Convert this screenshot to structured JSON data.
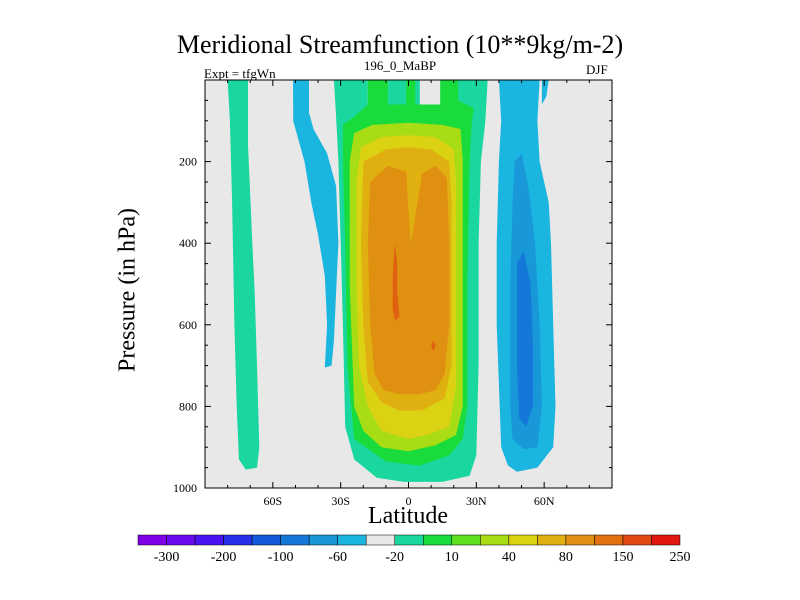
{
  "chart_data": {
    "type": "contour",
    "title": "Meridional Streamfunction (10**9kg/m-2)",
    "left_label": "Expt = tfgWn",
    "center_label": "196_0_MaBP",
    "right_label": "DJF",
    "xlabel": "Latitude",
    "ylabel": "Pressure (in hPa)",
    "xlim": [
      -90,
      90
    ],
    "ylim": [
      1000,
      0
    ],
    "x_ticks": [
      {
        "value": -60,
        "label": "60S"
      },
      {
        "value": -30,
        "label": "30S"
      },
      {
        "value": 0,
        "label": "0"
      },
      {
        "value": 30,
        "label": "30N"
      },
      {
        "value": 60,
        "label": "60N"
      }
    ],
    "y_ticks": [
      {
        "value": 200,
        "label": "200"
      },
      {
        "value": 400,
        "label": "400"
      },
      {
        "value": 600,
        "label": "600"
      },
      {
        "value": 800,
        "label": "800"
      },
      {
        "value": 1000,
        "label": "1000"
      }
    ],
    "colorbar": {
      "colors": [
        "#8000e6",
        "#6a0bee",
        "#4a14f0",
        "#2830e8",
        "#1558dc",
        "#1478d8",
        "#1898d8",
        "#1ab6e0",
        "#e8e8e8",
        "#1ad7a0",
        "#19dc3c",
        "#5ee01c",
        "#a8dc14",
        "#dcd214",
        "#e0b010",
        "#e09010",
        "#e07010",
        "#e04a10",
        "#e01810"
      ],
      "labels": [
        "-300",
        "-200",
        "-100",
        "-60",
        "-20",
        "10",
        "40",
        "80",
        "150",
        "250"
      ]
    },
    "regions": [
      {
        "name": "sh-outer-cell",
        "level": 10,
        "color": "#1ad7a0",
        "points": [
          [
            -80,
            0
          ],
          [
            -71,
            0
          ],
          [
            -71,
            160
          ],
          [
            -70,
            280
          ],
          [
            -69,
            410
          ],
          [
            -68,
            520
          ],
          [
            -67,
            700
          ],
          [
            -66,
            900
          ],
          [
            -67,
            950
          ],
          [
            -72,
            955
          ],
          [
            -75,
            930
          ],
          [
            -76,
            800
          ],
          [
            -77,
            600
          ],
          [
            -78,
            300
          ],
          [
            -79,
            100
          ]
        ]
      },
      {
        "name": "sh-negative-cell",
        "level": -20,
        "color": "#1ab6e0",
        "points": [
          [
            -51,
            0
          ],
          [
            -44,
            0
          ],
          [
            -44,
            80
          ],
          [
            -42,
            120
          ],
          [
            -36,
            180
          ],
          [
            -32,
            260
          ],
          [
            -31,
            400
          ],
          [
            -32,
            520
          ],
          [
            -33,
            640
          ],
          [
            -34,
            700
          ],
          [
            -37,
            705
          ],
          [
            -36,
            600
          ],
          [
            -37,
            480
          ],
          [
            -40,
            380
          ],
          [
            -43,
            300
          ],
          [
            -46,
            200
          ],
          [
            -49,
            140
          ],
          [
            -51,
            100
          ]
        ]
      },
      {
        "name": "hadley-10",
        "level": 10,
        "color": "#1ad7a0",
        "points": [
          [
            -38,
            0
          ],
          [
            -33,
            0
          ],
          [
            -32,
            90
          ],
          [
            -31,
            200
          ],
          [
            -30,
            400
          ],
          [
            -29,
            600
          ],
          [
            -28,
            850
          ],
          [
            -24,
            930
          ],
          [
            -14,
            975
          ],
          [
            -2,
            985
          ],
          [
            15,
            985
          ],
          [
            27,
            970
          ],
          [
            30,
            920
          ],
          [
            31,
            700
          ],
          [
            31,
            400
          ],
          [
            32,
            200
          ],
          [
            34,
            100
          ],
          [
            35,
            0
          ],
          [
            18,
            0
          ],
          [
            18,
            60
          ],
          [
            5,
            60
          ],
          [
            5,
            0
          ],
          [
            -9,
            0
          ],
          [
            -9,
            60
          ],
          [
            -18,
            60
          ],
          [
            -18,
            0
          ]
        ]
      },
      {
        "name": "hadley-40",
        "level": 40,
        "color": "#19dc3c",
        "points": [
          [
            -18,
            0
          ],
          [
            -9,
            0
          ],
          [
            -9,
            60
          ],
          [
            -1,
            60
          ],
          [
            -1,
            0
          ],
          [
            3,
            0
          ],
          [
            3,
            60
          ],
          [
            14,
            60
          ],
          [
            14,
            0
          ],
          [
            22,
            0
          ],
          [
            22,
            50
          ],
          [
            29,
            70
          ],
          [
            28,
            100
          ],
          [
            27,
            200
          ],
          [
            26,
            500
          ],
          [
            26,
            800
          ],
          [
            24,
            880
          ],
          [
            18,
            920
          ],
          [
            5,
            945
          ],
          [
            -10,
            935
          ],
          [
            -24,
            880
          ],
          [
            -27,
            700
          ],
          [
            -28,
            400
          ],
          [
            -29,
            200
          ],
          [
            -29,
            110
          ],
          [
            -24,
            90
          ],
          [
            -18,
            60
          ]
        ]
      },
      {
        "name": "hadley-80",
        "level": 80,
        "color": "#a8dc14",
        "points": [
          [
            -24,
            130
          ],
          [
            -16,
            110
          ],
          [
            0,
            105
          ],
          [
            15,
            110
          ],
          [
            23,
            120
          ],
          [
            24,
            200
          ],
          [
            24,
            500
          ],
          [
            24,
            800
          ],
          [
            21,
            870
          ],
          [
            12,
            895
          ],
          [
            0,
            910
          ],
          [
            -12,
            900
          ],
          [
            -20,
            860
          ],
          [
            -24,
            800
          ],
          [
            -26,
            500
          ],
          [
            -26,
            200
          ]
        ]
      },
      {
        "name": "hadley-150",
        "level": 150,
        "color": "#dcd214",
        "points": [
          [
            -21,
            165
          ],
          [
            -12,
            140
          ],
          [
            0,
            135
          ],
          [
            12,
            140
          ],
          [
            20,
            170
          ],
          [
            21,
            250
          ],
          [
            21,
            500
          ],
          [
            21,
            750
          ],
          [
            18,
            850
          ],
          [
            8,
            870
          ],
          [
            0,
            880
          ],
          [
            -12,
            860
          ],
          [
            -18,
            800
          ],
          [
            -22,
            700
          ],
          [
            -23,
            500
          ],
          [
            -23,
            250
          ]
        ]
      },
      {
        "name": "hadley-200",
        "level": 200,
        "color": "#e0b010",
        "points": [
          [
            -20,
            200
          ],
          [
            -10,
            170
          ],
          [
            0,
            165
          ],
          [
            10,
            170
          ],
          [
            18,
            200
          ],
          [
            19,
            300
          ],
          [
            19,
            500
          ],
          [
            19,
            700
          ],
          [
            16,
            780
          ],
          [
            6,
            810
          ],
          [
            -4,
            810
          ],
          [
            -12,
            790
          ],
          [
            -18,
            740
          ],
          [
            -20,
            600
          ],
          [
            -21,
            400
          ]
        ]
      },
      {
        "name": "hadley-250",
        "level": 250,
        "color": "#e09010",
        "points": [
          [
            -17,
            250
          ],
          [
            -9,
            210
          ],
          [
            -1,
            225
          ],
          [
            0,
            320
          ],
          [
            1,
            400
          ],
          [
            4,
            300
          ],
          [
            6,
            230
          ],
          [
            12,
            210
          ],
          [
            17,
            240
          ],
          [
            18,
            400
          ],
          [
            18,
            600
          ],
          [
            16,
            720
          ],
          [
            12,
            760
          ],
          [
            5,
            770
          ],
          [
            -4,
            770
          ],
          [
            -11,
            760
          ],
          [
            -15,
            720
          ],
          [
            -17,
            600
          ],
          [
            -18,
            400
          ]
        ]
      },
      {
        "name": "hadley-max",
        "level": 300,
        "color": "#e06010",
        "points": [
          [
            -6,
            400
          ],
          [
            -5,
            450
          ],
          [
            -5,
            520
          ],
          [
            -4,
            580
          ],
          [
            -6,
            590
          ],
          [
            -7,
            560
          ],
          [
            -7,
            480
          ]
        ]
      },
      {
        "name": "hadley-max-2",
        "level": 300,
        "color": "#e06010",
        "points": [
          [
            11,
            640
          ],
          [
            12,
            650
          ],
          [
            11,
            665
          ],
          [
            10,
            652
          ]
        ]
      },
      {
        "name": "nh-negative-20",
        "level": -20,
        "color": "#1ab6e0",
        "points": [
          [
            40,
            0
          ],
          [
            58,
            0
          ],
          [
            57,
            100
          ],
          [
            58,
            200
          ],
          [
            62,
            300
          ],
          [
            63,
            400
          ],
          [
            64,
            600
          ],
          [
            65,
            800
          ],
          [
            64,
            900
          ],
          [
            57,
            950
          ],
          [
            48,
            960
          ],
          [
            44,
            945
          ],
          [
            41,
            900
          ],
          [
            39,
            600
          ],
          [
            39,
            400
          ],
          [
            40,
            200
          ],
          [
            41,
            100
          ]
        ]
      },
      {
        "name": "nh-negative-60",
        "level": -60,
        "color": "#1898d8",
        "points": [
          [
            47,
            200
          ],
          [
            50,
            180
          ],
          [
            53,
            260
          ],
          [
            56,
            400
          ],
          [
            58,
            600
          ],
          [
            59,
            800
          ],
          [
            57,
            900
          ],
          [
            51,
            905
          ],
          [
            46,
            880
          ],
          [
            45,
            800
          ],
          [
            45,
            500
          ],
          [
            46,
            300
          ]
        ]
      },
      {
        "name": "nh-negative-100",
        "level": -100,
        "color": "#1478d8",
        "points": [
          [
            48,
            450
          ],
          [
            51,
            420
          ],
          [
            54,
            500
          ],
          [
            55,
            650
          ],
          [
            55,
            800
          ],
          [
            52,
            850
          ],
          [
            49,
            830
          ],
          [
            48,
            700
          ]
        ]
      },
      {
        "name": "top-right-20",
        "level": -20,
        "color": "#1ab6e0",
        "points": [
          [
            59,
            0
          ],
          [
            62,
            0
          ],
          [
            61,
            40
          ],
          [
            59,
            60
          ]
        ]
      },
      {
        "name": "top-left-lightblue",
        "level": -20,
        "color": "#1ab6e0",
        "points": [
          [
            -51,
            0
          ],
          [
            -50,
            0
          ],
          [
            -50,
            50
          ],
          [
            -51,
            50
          ]
        ]
      }
    ]
  }
}
